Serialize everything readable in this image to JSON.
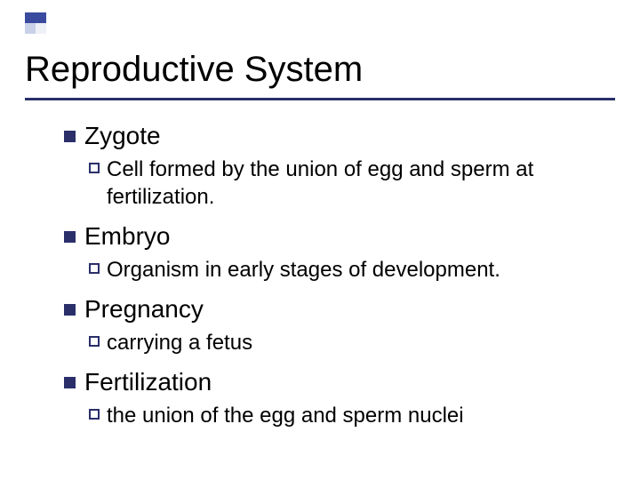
{
  "slide": {
    "title": "Reproductive System",
    "title_fontsize": 40,
    "title_color": "#000000",
    "background_color": "#ffffff",
    "accent_colors": {
      "primary": "#3a4a9f",
      "rule": "#2a2f6a",
      "light": "#c9d1e8",
      "lighter": "#eef0f7"
    },
    "items": [
      {
        "term": "Zygote",
        "definition": "Cell formed by the union of egg and sperm at fertilization."
      },
      {
        "term": "Embryo",
        "definition": "Organism in early stages of development."
      },
      {
        "term": "Pregnancy",
        "definition": "carrying a fetus"
      },
      {
        "term": "Fertilization",
        "definition": "the union of the egg and sperm nuclei"
      }
    ],
    "term_fontsize": 28,
    "def_fontsize": 24,
    "bullet_filled_color": "#2a2f6a",
    "bullet_outline_color": "#2a2f6a"
  }
}
